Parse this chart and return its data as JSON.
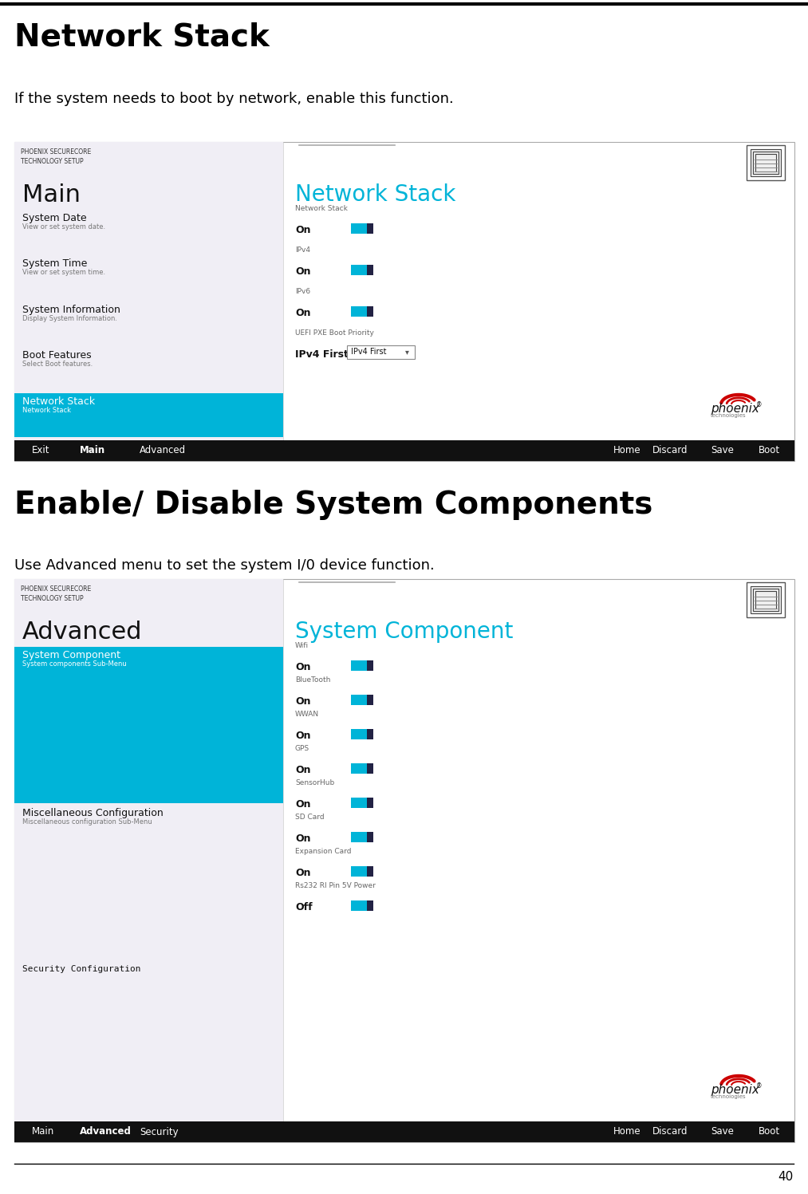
{
  "bg_color": "#ffffff",
  "page_number": "40",
  "section1_title": "Network Stack",
  "section1_desc": "If the system needs to boot by network, enable this function.",
  "section2_title": "Enable/ Disable System Components",
  "section2_desc": "Use Advanced menu to set the system I/0 device function.",
  "bios_bg_left": "#f0eef5",
  "bios_highlight_color": "#00b4d8",
  "bios1_header_text": "PHOENIX SECURECORE\nTECHNOLOGY SETUP",
  "bios1_main_title": "Main",
  "bios1_menu_items": [
    {
      "name": "System Date",
      "sub": "View or set system date.",
      "selected": false
    },
    {
      "name": "System Time",
      "sub": "View or set system time.",
      "selected": false
    },
    {
      "name": "System Information",
      "sub": "Display System Information.",
      "selected": false
    },
    {
      "name": "Boot Features",
      "sub": "Select Boot features.",
      "selected": false
    },
    {
      "name": "Network Stack",
      "sub": "Network Stack",
      "selected": true
    }
  ],
  "bios1_right_title": "Network Stack",
  "bios1_right_items": [
    {
      "label": "Network Stack",
      "value": "On",
      "toggle": true
    },
    {
      "label": "IPv4",
      "value": "On",
      "toggle": true
    },
    {
      "label": "IPv6",
      "value": "On",
      "toggle": true
    },
    {
      "label": "UEFI PXE Boot Priority",
      "value": "IPv4 First",
      "dropdown": true
    }
  ],
  "bios1_bottom_left": [
    "Exit",
    "Main",
    "Advanced"
  ],
  "bios1_bottom_right": [
    "Home",
    "Discard",
    "Save",
    "Boot"
  ],
  "bios1_bottom_bold": "Main",
  "bios2_header_text": "PHOENIX SECURECORE\nTECHNOLOGY SETUP",
  "bios2_main_title": "Advanced",
  "bios2_menu_items": [
    {
      "name": "System Component",
      "sub": "System components Sub-Menu",
      "selected": true
    },
    {
      "name": "Miscellaneous Configuration",
      "sub": "Miscellaneous configuration Sub-Menu",
      "selected": false
    },
    {
      "name": "Security Configuration",
      "sub": "",
      "selected": false,
      "mono": true
    }
  ],
  "bios2_right_title": "System Component",
  "bios2_right_items": [
    {
      "label": "Wifi",
      "value": "On",
      "toggle": true
    },
    {
      "label": "BlueTooth",
      "value": "On",
      "toggle": true
    },
    {
      "label": "WWAN",
      "value": "On",
      "toggle": true
    },
    {
      "label": "GPS",
      "value": "On",
      "toggle": true
    },
    {
      "label": "SensorHub",
      "value": "On",
      "toggle": true
    },
    {
      "label": "SD Card",
      "value": "On",
      "toggle": true
    },
    {
      "label": "Expansion Card",
      "value": "On",
      "toggle": true
    },
    {
      "label": "Rs232 RI Pin 5V Power",
      "value": "Off",
      "toggle": true
    }
  ],
  "bios2_bottom_left": [
    "Main",
    "Advanced",
    "Security"
  ],
  "bios2_bottom_right": [
    "Home",
    "Discard",
    "Save",
    "Boot"
  ],
  "bios2_bottom_bold": "Advanced",
  "toggle_cyan": "#00b4d8",
  "toggle_dark": "#222244",
  "bios_title_cyan": "#00b4d8",
  "bios_left_text_color": "#111111",
  "bios_sub_text_color": "#777777",
  "bios_selected_bg": "#00b4d8",
  "bios_selected_text": "#ffffff",
  "bottom_bar_bg": "#111111",
  "bottom_bar_text": "#ffffff"
}
